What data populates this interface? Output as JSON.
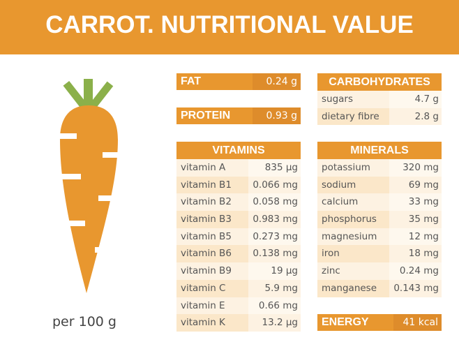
{
  "title": "CARROT. NUTRITIONAL VALUE",
  "serving": "per 100 g",
  "colors": {
    "accent": "#E8972F",
    "carrot": "#E8972F",
    "leaves": "#8BB04A"
  },
  "fat": {
    "label": "FAT",
    "value": "0.24 g"
  },
  "protein": {
    "label": "PROTEIN",
    "value": "0.93 g"
  },
  "energy": {
    "label": "ENERGY",
    "value": "41 kcal"
  },
  "carbohydrates": {
    "title": "CARBOHYDRATES",
    "rows": [
      [
        "sugars",
        "4.7 g"
      ],
      [
        "dietary fibre",
        "2.8 g"
      ]
    ]
  },
  "vitamins": {
    "title": "VITAMINS",
    "rows": [
      [
        "vitamin A",
        "835 µg"
      ],
      [
        "vitamin B1",
        "0.066 mg"
      ],
      [
        "vitamin B2",
        "0.058 mg"
      ],
      [
        "vitamin B3",
        "0.983 mg"
      ],
      [
        "vitamin B5",
        "0.273 mg"
      ],
      [
        "vitamin B6",
        "0.138 mg"
      ],
      [
        "vitamin B9",
        "19 µg"
      ],
      [
        "vitamin C",
        "5.9 mg"
      ],
      [
        "vitamin E",
        "0.66 mg"
      ],
      [
        "vitamin K",
        "13.2 µg"
      ]
    ]
  },
  "minerals": {
    "title": "MINERALS",
    "rows": [
      [
        "potassium",
        "320 mg"
      ],
      [
        "sodium",
        "69 mg"
      ],
      [
        "calcium",
        "33 mg"
      ],
      [
        "phosphorus",
        "35 mg"
      ],
      [
        "magnesium",
        "12 mg"
      ],
      [
        "iron",
        "18 mg"
      ],
      [
        "zinc",
        "0.24 mg"
      ],
      [
        "manganese",
        "0.143 mg"
      ]
    ]
  }
}
